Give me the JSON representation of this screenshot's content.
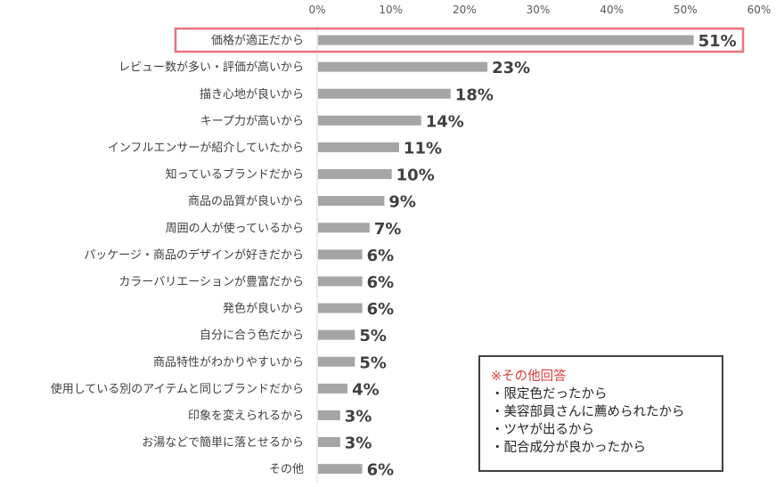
{
  "chart_data": {
    "type": "bar",
    "orientation": "horizontal",
    "title": "",
    "xlabel": "",
    "ylabel": "",
    "xlim": [
      0,
      60
    ],
    "x_ticks": [
      "0%",
      "10%",
      "20%",
      "30%",
      "40%",
      "50%",
      "60%"
    ],
    "x_axis_position": "top",
    "grid": false,
    "legend": "none",
    "categories": [
      "価格が適正だから",
      "レビュー数が多い・評価が高いから",
      "描き心地が良いから",
      "キープ力が高いから",
      "インフルエンサーが紹介していたから",
      "知っているブランドだから",
      "商品の品質が良いから",
      "周囲の人が使っているから",
      "パッケージ・商品のデザインが好きだから",
      "カラーバリエーションが豊富だから",
      "発色が良いから",
      "自分に合う色だから",
      "商品特性がわかりやすいから",
      "使用している別のアイテムと同じブランドだから",
      "印象を変えられるから",
      "お湯などで簡単に落とせるから",
      "その他"
    ],
    "values": [
      51,
      23,
      18,
      14,
      11,
      10,
      9,
      7,
      6,
      6,
      6,
      5,
      5,
      4,
      3,
      3,
      6
    ],
    "value_labels": [
      "51%",
      "23%",
      "18%",
      "14%",
      "11%",
      "10%",
      "9%",
      "7%",
      "6%",
      "6%",
      "6%",
      "5%",
      "5%",
      "4%",
      "3%",
      "3%",
      "6%"
    ],
    "highlighted_category": "価格が適正だから",
    "colors": {
      "bar": "#a5a5a5",
      "highlight_border": "#e8747c",
      "text": "#404040"
    }
  },
  "note": {
    "title": "※その他回答",
    "items": [
      "・限定色だったから",
      "・美容部員さんに薦められたから",
      "・ツヤが出るから",
      "・配合成分が良かったから"
    ],
    "title_color": "#e03c3c"
  }
}
